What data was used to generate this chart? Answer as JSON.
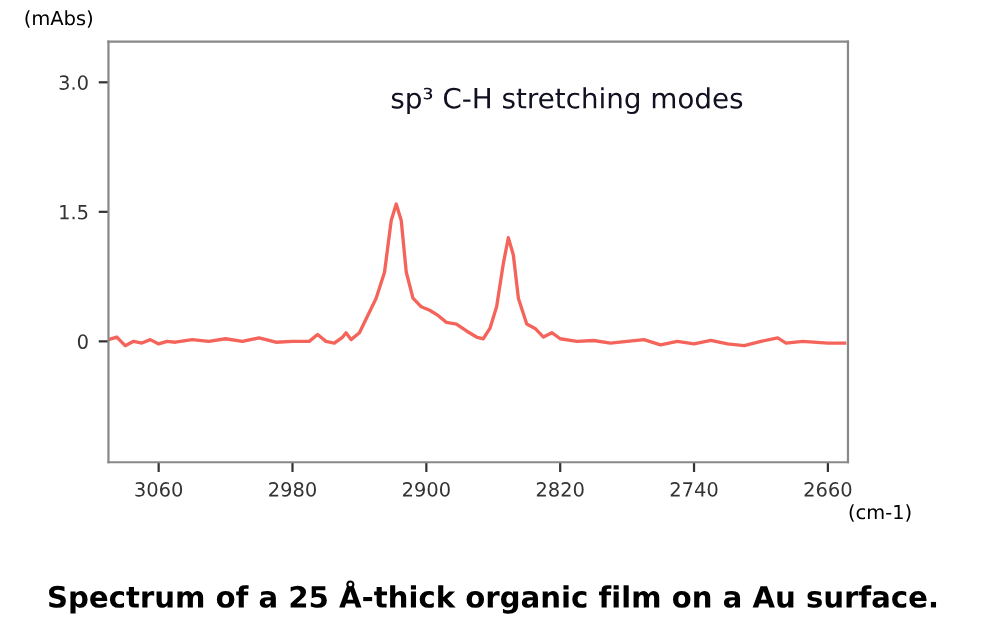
{
  "chart_data": {
    "type": "line",
    "title": "Spectrum of a 25 Å-thick organic film on a Au surface.",
    "xlabel": "(cm-1)",
    "ylabel": "(mAbs)",
    "annotations": [
      "sp³ C-H stretching modes"
    ],
    "xlim": [
      3090,
      2648
    ],
    "xticks": [
      3060,
      2980,
      2900,
      2820,
      2740,
      2660
    ],
    "ylim": [
      -1.4,
      3.47
    ],
    "yticks": [
      0,
      1.5,
      {
        "value": 3,
        "label": "3.0"
      }
    ],
    "grid": false,
    "legend": false,
    "series": [
      {
        "color": "#f4645a",
        "x": [
          3090,
          3085,
          3080,
          3075,
          3070,
          3065,
          3060,
          3055,
          3050,
          3040,
          3030,
          3020,
          3010,
          3000,
          2990,
          2980,
          2970,
          2965,
          2960,
          2955,
          2950,
          2948,
          2945,
          2940,
          2935,
          2930,
          2925,
          2921,
          2918,
          2915,
          2912,
          2908,
          2903,
          2898,
          2893,
          2888,
          2882,
          2876,
          2870,
          2866,
          2862,
          2858,
          2854,
          2851,
          2848,
          2845,
          2840,
          2835,
          2830,
          2825,
          2820,
          2810,
          2800,
          2790,
          2780,
          2770,
          2760,
          2750,
          2740,
          2730,
          2720,
          2710,
          2700,
          2690,
          2685,
          2675,
          2660,
          2650
        ],
        "values": [
          0.02,
          0.05,
          -0.05,
          0.0,
          -0.02,
          0.02,
          -0.03,
          0.0,
          -0.01,
          0.02,
          0.0,
          0.03,
          0.0,
          0.04,
          -0.01,
          0.0,
          0.0,
          0.08,
          0.0,
          -0.02,
          0.05,
          0.1,
          0.02,
          0.1,
          0.3,
          0.5,
          0.8,
          1.4,
          1.59,
          1.4,
          0.8,
          0.5,
          0.4,
          0.36,
          0.3,
          0.22,
          0.2,
          0.12,
          0.05,
          0.03,
          0.15,
          0.4,
          0.9,
          1.2,
          1.0,
          0.5,
          0.2,
          0.15,
          0.05,
          0.1,
          0.03,
          0.0,
          0.01,
          -0.02,
          0.0,
          0.02,
          -0.04,
          0.0,
          -0.03,
          0.01,
          -0.03,
          -0.05,
          0.0,
          0.04,
          -0.02,
          0.0,
          -0.02,
          -0.02
        ]
      }
    ]
  }
}
